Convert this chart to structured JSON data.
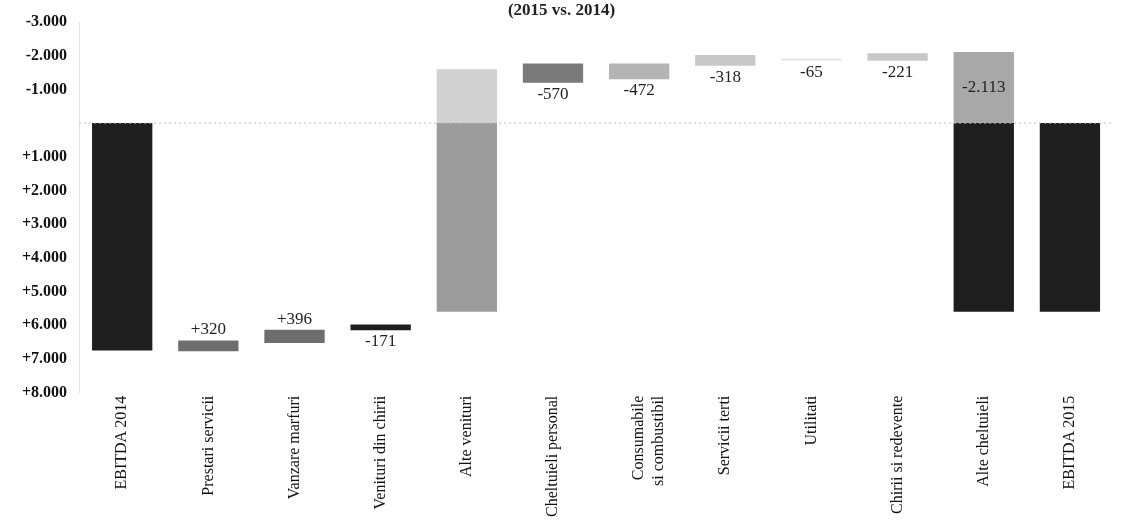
{
  "chart_data": {
    "type": "bar",
    "title": "(2015 vs. 2014)",
    "categories": [
      "EBITDA 2014",
      "Prestari servicii",
      "Vanzare marfuri",
      "Venituri din chirii",
      "Alte venituri",
      "Cheltuieli personal",
      "Consumabile\nsi combustibil",
      "Servicii terti",
      "Utilitati",
      "Chirii si redevente",
      "Alte cheltuieli",
      "EBITDA 2015"
    ],
    "series": [
      {
        "colors": [
          "#1e1e1e",
          "#6e6e6e",
          "#6e6e6e",
          "#1e1e1e",
          "#9c9c9c",
          "#7a7a7a",
          "#b4b4b4",
          "#c8c8c8",
          "#e6e6e6",
          "#c8c8c8",
          "#1e1e1e",
          "#1e1e1e"
        ],
        "base": [
          0,
          6450,
          6130,
          6150,
          0,
          -1200,
          -1300,
          -1700,
          -1850,
          -1850,
          0,
          0
        ],
        "values": [
          6750,
          320,
          396,
          -171,
          5600,
          -570,
          -472,
          -318,
          -65,
          -221,
          5600,
          5600
        ],
        "value_labels": [
          null,
          "+320",
          "+396",
          "-171",
          null,
          "-570",
          "-472",
          "-318",
          "-65",
          "-221",
          null,
          null
        ]
      },
      {
        "colors": [
          null,
          null,
          null,
          null,
          "#d2d2d2",
          null,
          null,
          null,
          null,
          null,
          "#a8a8a8",
          null
        ],
        "base": [
          null,
          null,
          null,
          null,
          0,
          null,
          null,
          null,
          null,
          null,
          0,
          null
        ],
        "values": [
          null,
          null,
          null,
          null,
          -1600,
          null,
          null,
          null,
          null,
          null,
          -2113,
          null
        ],
        "value_labels": [
          null,
          null,
          null,
          null,
          null,
          null,
          null,
          null,
          null,
          null,
          "-2.113",
          null
        ]
      }
    ],
    "ylim": [
      8000,
      -3000
    ],
    "yticks": [
      {
        "value": -3000,
        "label": "-3.000"
      },
      {
        "value": -2000,
        "label": "-2.000"
      },
      {
        "value": -1000,
        "label": "-1.000"
      },
      {
        "value": 0,
        "label": null
      },
      {
        "value": 1000,
        "label": "+1.000"
      },
      {
        "value": 2000,
        "label": "+2.000"
      },
      {
        "value": 3000,
        "label": "+3.000"
      },
      {
        "value": 4000,
        "label": "+4.000"
      },
      {
        "value": 5000,
        "label": "+5.000"
      },
      {
        "value": 6000,
        "label": "+6.000"
      },
      {
        "value": 7000,
        "label": "+7.000"
      },
      {
        "value": 8000,
        "label": "+8.000"
      }
    ],
    "ref_lines": [
      {
        "axis": "y",
        "value": 0,
        "color": "#bbbbbb",
        "line_style": "dotted"
      }
    ],
    "grid": false,
    "legend": false
  }
}
